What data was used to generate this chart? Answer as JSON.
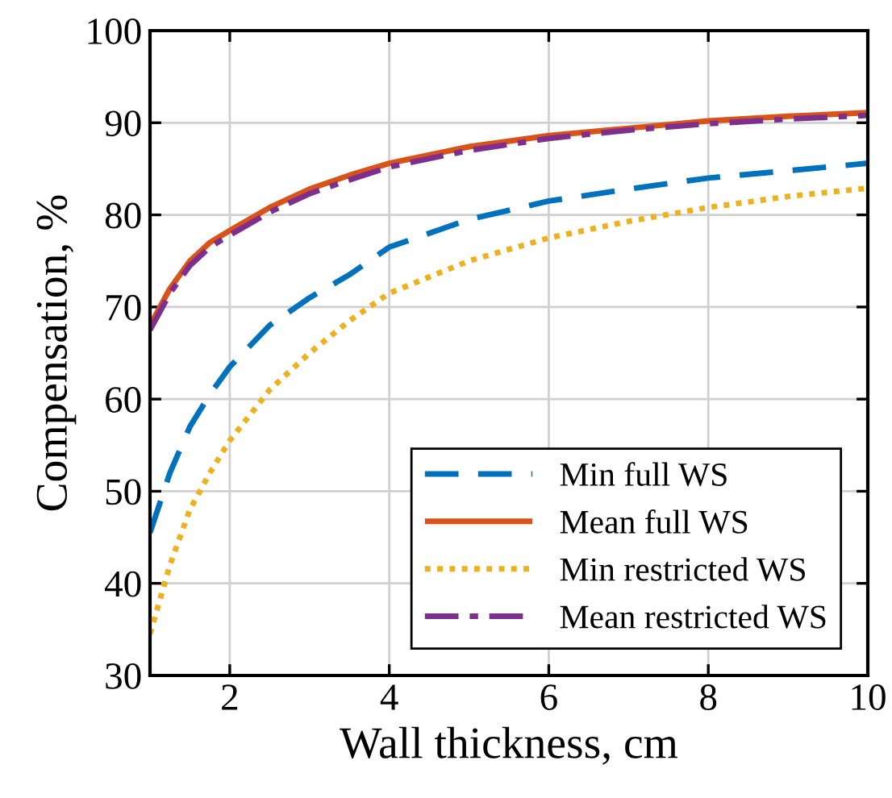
{
  "chart_data": {
    "type": "line",
    "xlabel": "Wall thickness, cm",
    "ylabel": "Compensation, %",
    "x": [
      1,
      1.25,
      1.5,
      1.75,
      2,
      2.5,
      3,
      3.5,
      4,
      5,
      6,
      7,
      8,
      9,
      10
    ],
    "series": [
      {
        "name": "Min full WS",
        "color": "#0072bd",
        "line_style": "dashed",
        "values": [
          45.5,
          52,
          57,
          60.5,
          63.5,
          68,
          71,
          73.5,
          76.5,
          79.5,
          81.5,
          82.8,
          84,
          84.8,
          85.6
        ]
      },
      {
        "name": "Mean full WS",
        "color": "#d95319",
        "line_style": "solid",
        "values": [
          68,
          72,
          75,
          77,
          78.3,
          80.8,
          82.8,
          84.3,
          85.6,
          87.4,
          88.6,
          89.4,
          90.2,
          90.7,
          91.1
        ]
      },
      {
        "name": "Min restricted WS",
        "color": "#edb120",
        "line_style": "dotted",
        "values": [
          34.5,
          42,
          48,
          52,
          55.5,
          61,
          65,
          68.5,
          71.5,
          75,
          77.5,
          79.3,
          80.8,
          82,
          82.9
        ]
      },
      {
        "name": "Mean restricted WS",
        "color": "#7e2f8e",
        "line_style": "dashdot",
        "values": [
          67.5,
          71.5,
          74.5,
          76.5,
          77.8,
          80.3,
          82.3,
          83.8,
          85.2,
          87,
          88.3,
          89.2,
          89.9,
          90.4,
          90.8
        ]
      }
    ],
    "xlim": [
      1,
      10
    ],
    "xticks": [
      2,
      4,
      6,
      8,
      10
    ],
    "ylim": [
      30,
      100
    ],
    "yticks": [
      30,
      40,
      50,
      60,
      70,
      80,
      90,
      100
    ],
    "grid": true,
    "legend": "lower right"
  }
}
